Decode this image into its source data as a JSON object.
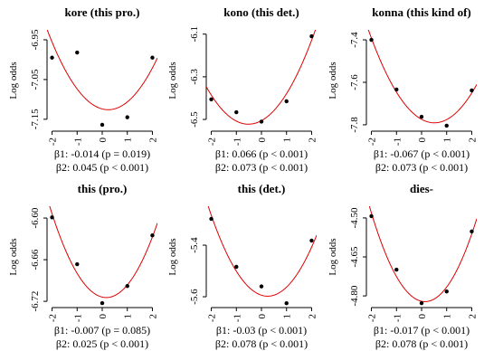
{
  "chart_data": [
    {
      "type": "scatter",
      "title": "kore (this pro.)",
      "y_label": "Log odds",
      "x": [
        -2,
        -1,
        0,
        1,
        2
      ],
      "values": [
        -6.995,
        -6.982,
        -7.164,
        -7.145,
        -6.995
      ],
      "xlim": [
        -2.2,
        2.2
      ],
      "xticks": [
        -2,
        -1,
        0,
        1,
        2
      ],
      "ylim": [
        -7.18,
        -6.925
      ],
      "yticks": [
        -6.95,
        -7.05,
        -7.15
      ],
      "annotations": [
        "β1: -0.014 (p = 0.019)",
        "β2: 0.045 (p < 0.001)"
      ],
      "color": "#000000",
      "fit_color": "#dd0000"
    },
    {
      "type": "scatter",
      "title": "kono (this det.)",
      "y_label": "Log odds",
      "x": [
        -2,
        -1,
        0,
        1,
        2
      ],
      "values": [
        -6.406,
        -6.466,
        -6.51,
        -6.415,
        -6.11
      ],
      "xlim": [
        -2.2,
        2.2
      ],
      "xticks": [
        -2,
        -1,
        0,
        1,
        2
      ],
      "ylim": [
        -6.555,
        -6.08
      ],
      "yticks": [
        -6.1,
        -6.3,
        -6.5
      ],
      "annotations": [
        "β1: 0.066 (p < 0.001)",
        "β2: 0.073 (p < 0.001)"
      ],
      "color": "#000000",
      "fit_color": "#dd0000"
    },
    {
      "type": "scatter",
      "title": "konna (this kind of)",
      "y_label": "Log odds",
      "x": [
        -2,
        -1,
        0,
        1,
        2
      ],
      "values": [
        -7.4,
        -7.634,
        -7.762,
        -7.804,
        -7.638
      ],
      "xlim": [
        -2.2,
        2.2
      ],
      "xticks": [
        -2,
        -1,
        0,
        1,
        2
      ],
      "ylim": [
        -7.83,
        -7.353
      ],
      "yticks": [
        -7.4,
        -7.6,
        -7.8
      ],
      "annotations": [
        "β1: -0.067 (p < 0.001)",
        "β2: 0.073 (p < 0.001)"
      ],
      "color": "#000000",
      "fit_color": "#dd0000"
    },
    {
      "type": "scatter",
      "title": "this (pro.)",
      "y_label": "Log odds",
      "x": [
        -2,
        -1,
        0,
        1,
        2
      ],
      "values": [
        -6.599,
        -6.6665,
        -6.7226,
        -6.698,
        -6.625
      ],
      "xlim": [
        -2.2,
        2.2
      ],
      "xticks": [
        -2,
        -1,
        0,
        1,
        2
      ],
      "ylim": [
        -6.729,
        -6.583
      ],
      "yticks": [
        {
          "value": -6.6,
          "label": "-6.60"
        },
        -6.66,
        -6.72
      ],
      "annotations": [
        "β1: -0.007 (p = 0.085)",
        "β2: 0.025 (p < 0.001)"
      ],
      "color": "#000000",
      "fit_color": "#dd0000"
    },
    {
      "type": "scatter",
      "title": "this (det.)",
      "y_label": "Log odds",
      "x": [
        -2,
        -1,
        0,
        1,
        2
      ],
      "values": [
        -5.298,
        -5.484,
        -5.56,
        -5.625,
        -5.382
      ],
      "xlim": [
        -2.2,
        2.2
      ],
      "xticks": [
        -2,
        -1,
        0,
        1,
        2
      ],
      "ylim": [
        -5.642,
        -5.249
      ],
      "yticks": [
        -5.4,
        -5.6
      ],
      "annotations": [
        "β1: -0.03 (p < 0.001)",
        "β2: 0.078 (p < 0.001)"
      ],
      "color": "#000000",
      "fit_color": "#dd0000"
    },
    {
      "type": "scatter",
      "title": "dies-",
      "y_label": "Log odds",
      "x": [
        -2,
        -1,
        0,
        1,
        2
      ],
      "values": [
        -4.493,
        -4.699,
        -4.828,
        -4.783,
        -4.552
      ],
      "xlim": [
        -2.2,
        2.2
      ],
      "xticks": [
        -2,
        -1,
        0,
        1,
        2
      ],
      "ylim": [
        -4.845,
        -4.455
      ],
      "yticks": [
        {
          "value": -4.5,
          "label": "-4.50"
        },
        -4.65,
        {
          "value": -4.8,
          "label": "-4.80"
        }
      ],
      "annotations": [
        "β1: -0.017 (p < 0.001)",
        "β2: 0.078 (p < 0.001)"
      ],
      "color": "#000000",
      "fit_color": "#dd0000"
    }
  ]
}
